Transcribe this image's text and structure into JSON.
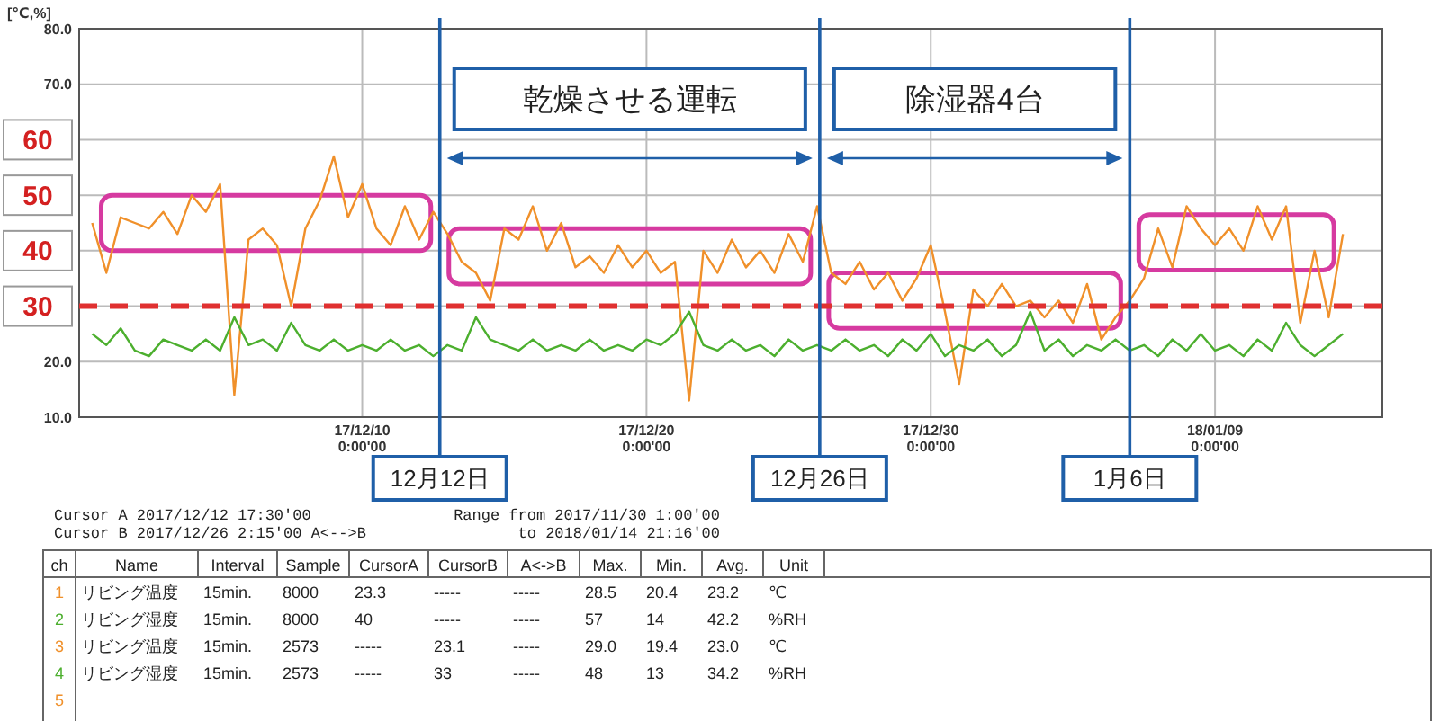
{
  "chart_data": {
    "type": "line",
    "ylabel": "[℃,%]",
    "xlim": [
      "2017-11-30T01:00",
      "2018-01-14T21:16"
    ],
    "xticks": [
      {
        "value": "2017-12-10T00:00",
        "label": "17/12/10 0:00'00"
      },
      {
        "value": "2017-12-20T00:00",
        "label": "17/12/20 0:00'00"
      },
      {
        "value": "2017-12-30T00:00",
        "label": "17/12/30 0:00'00"
      },
      {
        "value": "2018-01-09T00:00",
        "label": "18/01/09 0:00'00"
      }
    ],
    "ylim": [
      10,
      80
    ],
    "yticks": [
      {
        "value": 80,
        "label": "80.0"
      },
      {
        "value": 70,
        "label": "70.0"
      },
      {
        "value": 60,
        "label": null
      },
      {
        "value": 50,
        "label": null
      },
      {
        "value": 40,
        "label": null
      },
      {
        "value": 30,
        "label": null
      },
      {
        "value": 20,
        "label": "20.0"
      },
      {
        "value": 10,
        "label": "10.0"
      }
    ],
    "grid": true,
    "x": [
      "2017-11-30T12:00",
      "2017-12-01T00:00",
      "2017-12-01T12:00",
      "2017-12-02T00:00",
      "2017-12-02T12:00",
      "2017-12-03T00:00",
      "2017-12-03T12:00",
      "2017-12-04T00:00",
      "2017-12-04T12:00",
      "2017-12-05T00:00",
      "2017-12-05T12:00",
      "2017-12-06T00:00",
      "2017-12-06T12:00",
      "2017-12-07T00:00",
      "2017-12-07T12:00",
      "2017-12-08T00:00",
      "2017-12-08T12:00",
      "2017-12-09T00:00",
      "2017-12-09T12:00",
      "2017-12-10T00:00",
      "2017-12-10T12:00",
      "2017-12-11T00:00",
      "2017-12-11T12:00",
      "2017-12-12T00:00",
      "2017-12-12T12:00",
      "2017-12-13T00:00",
      "2017-12-13T12:00",
      "2017-12-14T00:00",
      "2017-12-14T12:00",
      "2017-12-15T00:00",
      "2017-12-15T12:00",
      "2017-12-16T00:00",
      "2017-12-16T12:00",
      "2017-12-17T00:00",
      "2017-12-17T12:00",
      "2017-12-18T00:00",
      "2017-12-18T12:00",
      "2017-12-19T00:00",
      "2017-12-19T12:00",
      "2017-12-20T00:00",
      "2017-12-20T12:00",
      "2017-12-21T00:00",
      "2017-12-21T12:00",
      "2017-12-22T00:00",
      "2017-12-22T12:00",
      "2017-12-23T00:00",
      "2017-12-23T12:00",
      "2017-12-24T00:00",
      "2017-12-24T12:00",
      "2017-12-25T00:00",
      "2017-12-25T12:00",
      "2017-12-26T00:00",
      "2017-12-26T12:00",
      "2017-12-27T00:00",
      "2017-12-27T12:00",
      "2017-12-28T00:00",
      "2017-12-28T12:00",
      "2017-12-29T00:00",
      "2017-12-29T12:00",
      "2017-12-30T00:00",
      "2017-12-30T12:00",
      "2017-12-31T00:00",
      "2017-12-31T12:00",
      "2018-01-01T00:00",
      "2018-01-01T12:00",
      "2018-01-02T00:00",
      "2018-01-02T12:00",
      "2018-01-03T00:00",
      "2018-01-03T12:00",
      "2018-01-04T00:00",
      "2018-01-04T12:00",
      "2018-01-05T00:00",
      "2018-01-05T12:00",
      "2018-01-06T00:00",
      "2018-01-06T12:00",
      "2018-01-07T00:00",
      "2018-01-07T12:00",
      "2018-01-08T00:00",
      "2018-01-08T12:00",
      "2018-01-09T00:00",
      "2018-01-09T12:00",
      "2018-01-10T00:00",
      "2018-01-10T12:00",
      "2018-01-11T00:00",
      "2018-01-11T12:00",
      "2018-01-12T00:00",
      "2018-01-12T12:00",
      "2018-01-13T00:00",
      "2018-01-13T12:00"
    ],
    "series": [
      {
        "color": "#f0902a",
        "values": [
          45,
          36,
          46,
          45,
          44,
          47,
          43,
          50,
          47,
          52,
          14,
          42,
          44,
          41,
          30,
          44,
          49,
          57,
          46,
          52,
          44,
          41,
          48,
          42,
          47,
          43,
          38,
          36,
          31,
          44,
          42,
          48,
          40,
          45,
          37,
          39,
          36,
          41,
          37,
          40,
          36,
          38,
          13,
          40,
          36,
          42,
          37,
          40,
          36,
          43,
          38,
          48,
          36,
          34,
          38,
          33,
          36,
          31,
          35,
          41,
          29,
          16,
          33,
          30,
          34,
          30,
          31,
          28,
          31,
          27,
          34,
          24,
          28,
          31,
          35,
          44,
          37,
          48,
          44,
          41,
          44,
          40,
          48,
          42,
          48,
          27,
          40,
          28,
          43
        ]
      },
      {
        "color": "#4caf2e",
        "values": [
          25,
          23,
          26,
          22,
          21,
          24,
          23,
          22,
          24,
          22,
          28,
          23,
          24,
          22,
          27,
          23,
          22,
          24,
          22,
          23,
          22,
          24,
          22,
          23,
          21,
          23,
          22,
          28,
          24,
          23,
          22,
          24,
          22,
          23,
          22,
          24,
          22,
          23,
          22,
          24,
          23,
          25,
          29,
          23,
          22,
          24,
          22,
          23,
          21,
          24,
          22,
          23,
          22,
          24,
          22,
          23,
          21,
          24,
          22,
          25,
          21,
          23,
          22,
          24,
          21,
          23,
          29,
          22,
          24,
          21,
          23,
          22,
          24,
          22,
          23,
          21,
          24,
          22,
          25,
          22,
          23,
          21,
          24,
          22,
          27,
          23,
          21,
          23,
          25
        ]
      }
    ],
    "ref_lines": [
      {
        "axis": "y",
        "value": 30,
        "color": "#e03030",
        "line_style": "dashed"
      },
      {
        "axis": "x",
        "value": "2017-12-12T17:30",
        "label": "12月12日",
        "color": "#1f5fa8"
      },
      {
        "axis": "x",
        "value": "2017-12-26T02:15",
        "label": "12月26日",
        "color": "#1f5fa8"
      },
      {
        "axis": "x",
        "value": "2018-01-06T00:00",
        "label": "1月6日",
        "color": "#1f5fa8"
      }
    ],
    "annotations": [
      "60",
      "50",
      "40",
      "30",
      "乾燥させる運転",
      "除湿器4台",
      "Cursor A 2017/12/12 17:30'00",
      "Cursor B 2017/12/26  2:15'00  A<-->B",
      "Range from 2017/11/30  1:00'00",
      "to 2018/01/14 21:16'00",
      "ch\tName\tInterval\tSample\tCursorA\tCursorB\tA<->B\tMax.\tMin.\tAvg.\tUnit",
      "1\tリビング温度\t15min.\t8000\t23.3\t-----\t-----\t28.5\t20.4\t23.2\t℃",
      "2\tリビング湿度\t15min.\t8000\t40\t-----\t-----\t57\t14\t42.2\t%RH",
      "3\tリビング温度\t15min.\t2573\t-----\t23.1\t-----\t29.0\t19.4\t23.0\t℃",
      "4\tリビング湿度\t15min.\t2573\t-----\t33\t-----\t48\t13\t34.2\t%RH",
      "5"
    ]
  }
}
